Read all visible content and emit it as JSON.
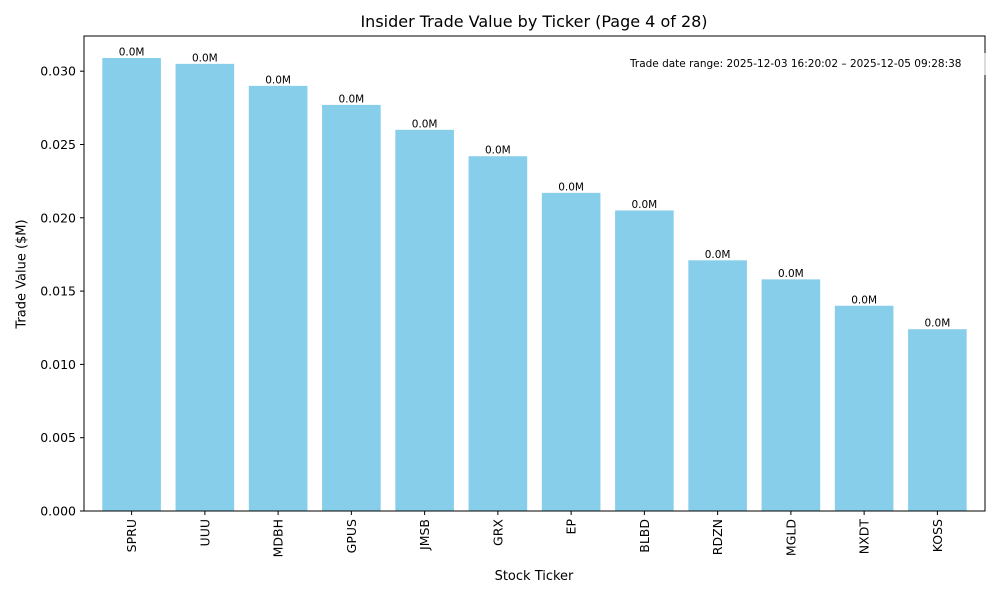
{
  "chart_data": {
    "type": "bar",
    "title": "Insider Trade Value by Ticker (Page 4 of 28)",
    "xlabel": "Stock Ticker",
    "ylabel": "Trade Value ($M)",
    "annotation": "Trade date range: 2025-12-03 16:20:02 – 2025-12-05 09:28:38",
    "categories": [
      "SPRU",
      "UUU",
      "MDBH",
      "GPUS",
      "JMSB",
      "GRX",
      "EP",
      "BLBD",
      "RDZN",
      "MGLD",
      "NXDT",
      "KOSS"
    ],
    "values": [
      0.0309,
      0.0305,
      0.029,
      0.0277,
      0.026,
      0.0242,
      0.0217,
      0.0205,
      0.0171,
      0.0158,
      0.014,
      0.0124
    ],
    "data_labels": [
      "0.0M",
      "0.0M",
      "0.0M",
      "0.0M",
      "0.0M",
      "0.0M",
      "0.0M",
      "0.0M",
      "0.0M",
      "0.0M",
      "0.0M",
      "0.0M"
    ],
    "yticks": [
      0.0,
      0.005,
      0.01,
      0.015,
      0.02,
      0.025,
      0.03
    ],
    "ytick_labels": [
      "0.000",
      "0.005",
      "0.010",
      "0.015",
      "0.020",
      "0.025",
      "0.030"
    ],
    "ylim": [
      0,
      0.0324
    ],
    "grid": false,
    "bar_color": "#87CEEB"
  }
}
